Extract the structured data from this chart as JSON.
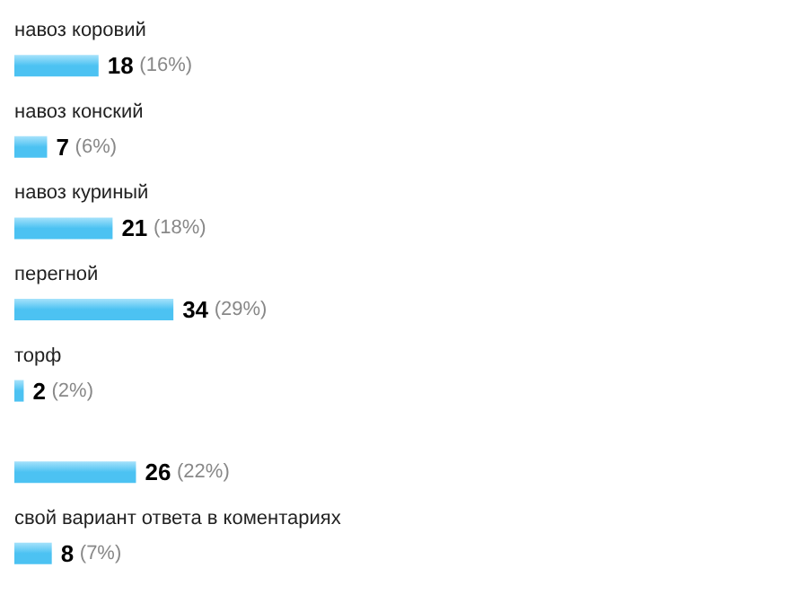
{
  "chart_data": {
    "type": "bar",
    "orientation": "horizontal",
    "categories": [
      "навоз коровий",
      "навоз конский",
      "навоз куриный",
      "перегной",
      "торф",
      null,
      "свой вариант ответа в коментариях"
    ],
    "values": [
      18,
      7,
      21,
      34,
      2,
      26,
      8
    ],
    "value_labels": [
      "18 (16%)",
      "7 (6%)",
      "21 (18%)",
      "34 (29%)",
      "2 (2%)",
      "26 (22%)",
      "8 (7%)"
    ],
    "color": "#4cc2f2"
  }
}
